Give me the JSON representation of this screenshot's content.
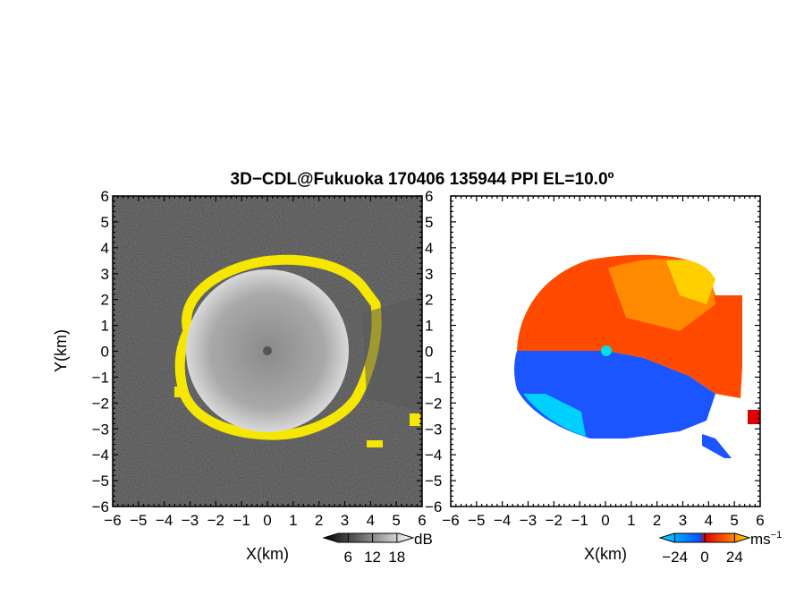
{
  "figure": {
    "title": "3D−CDL@Fukuoka 170406 135944 PPI EL=10.0º"
  },
  "chart_data": [
    {
      "type": "heatmap",
      "panel": "reflectivity",
      "xlabel": "X(km)",
      "ylabel": "Y(km)",
      "xlim": [
        -6,
        6
      ],
      "ylim": [
        -6,
        6
      ],
      "x_ticks": [
        "−6",
        "−5",
        "−4",
        "−3",
        "−2",
        "−1",
        "0",
        "1",
        "2",
        "3",
        "4",
        "5",
        "6"
      ],
      "y_ticks": [
        "6",
        "5",
        "4",
        "3",
        "2",
        "1",
        "0",
        "−1",
        "−2",
        "−3",
        "−4",
        "−5",
        "−6"
      ],
      "echo_radius_km": 3.2,
      "colorbar": {
        "unit": "dB",
        "tick_labels": [
          "6",
          "12",
          "18"
        ],
        "ticks": [
          6,
          12,
          18
        ],
        "range": [
          0,
          22
        ],
        "colors": [
          "#000000",
          "#ffffff"
        ],
        "highlight_color": "#f5e700"
      }
    },
    {
      "type": "heatmap",
      "panel": "doppler-velocity",
      "xlabel": "X(km)",
      "xlim": [
        -6,
        6
      ],
      "ylim": [
        -6,
        6
      ],
      "x_ticks": [
        "−6",
        "−5",
        "−4",
        "−3",
        "−2",
        "−1",
        "0",
        "1",
        "2",
        "3",
        "4",
        "5",
        "6"
      ],
      "y_ticks": [
        "6",
        "5",
        "4",
        "3",
        "2",
        "1",
        "0",
        "−1",
        "−2",
        "−3",
        "−4",
        "−5",
        "−6"
      ],
      "colorbar": {
        "unit": "ms",
        "unit_exponent": "−1",
        "tick_labels": [
          "−24",
          "0",
          "24"
        ],
        "ticks": [
          -24,
          0,
          24
        ],
        "range": [
          -36,
          36
        ],
        "colors": [
          "#00e0ff",
          "#0050ff",
          "#e00000",
          "#ff6000",
          "#ffe000"
        ]
      }
    }
  ]
}
